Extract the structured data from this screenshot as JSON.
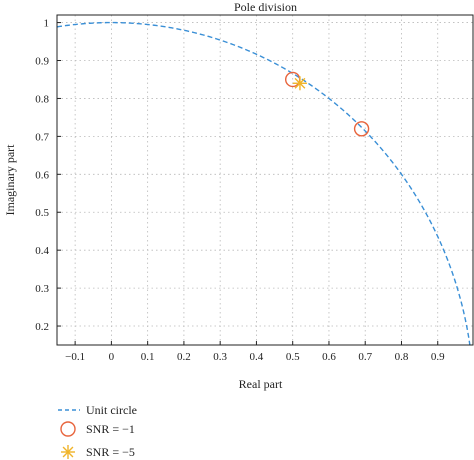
{
  "chart_data": {
    "type": "scatter",
    "title": "Pole division",
    "xlabel": "Real part",
    "ylabel": "Imaginary part",
    "xlim": [
      -0.15,
      1.0
    ],
    "ylim": [
      0.15,
      1.02
    ],
    "xticks": [
      -0.1,
      0,
      0.1,
      0.2,
      0.3,
      0.4,
      0.5,
      0.6,
      0.7,
      0.8,
      0.9
    ],
    "xtick_labels": [
      "−0.1",
      "0",
      "0.1",
      "0.2",
      "0.3",
      "0.4",
      "0.5",
      "0.6",
      "0.7",
      "0.8",
      "0.9"
    ],
    "yticks": [
      0.2,
      0.3,
      0.4,
      0.5,
      0.6,
      0.7,
      0.8,
      0.9,
      1
    ],
    "ytick_labels": [
      "0.2",
      "0.3",
      "0.4",
      "0.5",
      "0.6",
      "0.7",
      "0.8",
      "0.9",
      "1"
    ],
    "grid": true,
    "legend_position": "bottom",
    "series": [
      {
        "name": "Unit circle",
        "kind": "dashed-line",
        "color": "#3a8fd6"
      },
      {
        "name": "SNR = −1",
        "kind": "circle-marker",
        "color": "#e8643c",
        "points": [
          {
            "x": 0.5,
            "y": 0.85
          },
          {
            "x": 0.69,
            "y": 0.72
          }
        ]
      },
      {
        "name": "SNR = −5",
        "kind": "star-marker",
        "color": "#f0b429",
        "points": [
          {
            "x": 0.52,
            "y": 0.84
          }
        ]
      }
    ]
  }
}
